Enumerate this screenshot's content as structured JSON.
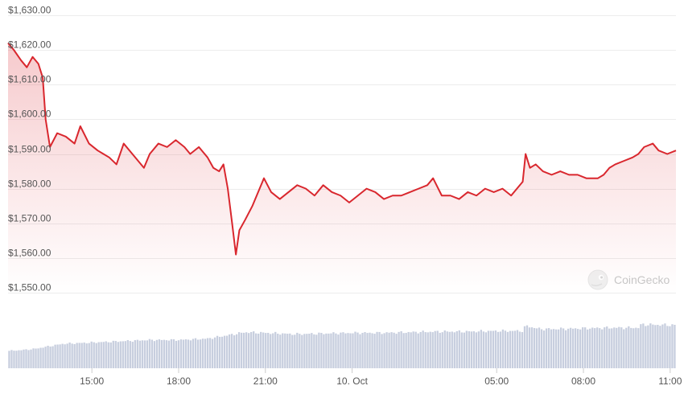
{
  "chart_data": {
    "type": "line",
    "title": "",
    "xlabel": "",
    "ylabel": "",
    "ylim": [
      1540,
      1632
    ],
    "y_ticks": [
      1550,
      1560,
      1570,
      1580,
      1590,
      1600,
      1610,
      1620,
      1630
    ],
    "y_tick_labels": [
      "$1,550.00",
      "$1,560.00",
      "$1,570.00",
      "$1,580.00",
      "$1,590.00",
      "$1,600.00",
      "$1,610.00",
      "$1,620.00",
      "$1,630.00"
    ],
    "x_range_hours": [
      12.1,
      35.2
    ],
    "x_ticks": [
      {
        "h": 15,
        "label": "15:00"
      },
      {
        "h": 18,
        "label": "18:00"
      },
      {
        "h": 21,
        "label": "21:00"
      },
      {
        "h": 24,
        "label": "10. Oct"
      },
      {
        "h": 29,
        "label": "05:00"
      },
      {
        "h": 32,
        "label": "08:00"
      },
      {
        "h": 35,
        "label": "11:00"
      }
    ],
    "grid": true,
    "legend": "none",
    "series": [
      {
        "values": [
          [
            12.1,
            1622
          ],
          [
            12.3,
            1620
          ],
          [
            12.55,
            1617
          ],
          [
            12.75,
            1615
          ],
          [
            12.95,
            1618
          ],
          [
            13.15,
            1616
          ],
          [
            13.3,
            1612
          ],
          [
            13.4,
            1600
          ],
          [
            13.55,
            1592
          ],
          [
            13.8,
            1596
          ],
          [
            14.1,
            1595
          ],
          [
            14.4,
            1593
          ],
          [
            14.6,
            1598
          ],
          [
            14.9,
            1593
          ],
          [
            15.2,
            1591
          ],
          [
            15.6,
            1589
          ],
          [
            15.85,
            1587
          ],
          [
            16.1,
            1593
          ],
          [
            16.4,
            1590
          ],
          [
            16.6,
            1588
          ],
          [
            16.8,
            1586
          ],
          [
            17.0,
            1590
          ],
          [
            17.3,
            1593
          ],
          [
            17.6,
            1592
          ],
          [
            17.9,
            1594
          ],
          [
            18.2,
            1592
          ],
          [
            18.4,
            1590
          ],
          [
            18.7,
            1592
          ],
          [
            19.0,
            1589
          ],
          [
            19.2,
            1586
          ],
          [
            19.4,
            1585
          ],
          [
            19.55,
            1587
          ],
          [
            19.7,
            1580
          ],
          [
            19.85,
            1570
          ],
          [
            19.98,
            1561
          ],
          [
            20.1,
            1568
          ],
          [
            20.3,
            1571
          ],
          [
            20.55,
            1575
          ],
          [
            20.8,
            1580
          ],
          [
            20.95,
            1583
          ],
          [
            21.2,
            1579
          ],
          [
            21.5,
            1577
          ],
          [
            21.8,
            1579
          ],
          [
            22.1,
            1581
          ],
          [
            22.4,
            1580
          ],
          [
            22.7,
            1578
          ],
          [
            23.0,
            1581
          ],
          [
            23.3,
            1579
          ],
          [
            23.6,
            1578
          ],
          [
            23.9,
            1576
          ],
          [
            24.2,
            1578
          ],
          [
            24.5,
            1580
          ],
          [
            24.8,
            1579
          ],
          [
            25.1,
            1577
          ],
          [
            25.4,
            1578
          ],
          [
            25.7,
            1578
          ],
          [
            26.0,
            1579
          ],
          [
            26.3,
            1580
          ],
          [
            26.6,
            1581
          ],
          [
            26.8,
            1583
          ],
          [
            27.1,
            1578
          ],
          [
            27.4,
            1578
          ],
          [
            27.7,
            1577
          ],
          [
            28.0,
            1579
          ],
          [
            28.3,
            1578
          ],
          [
            28.6,
            1580
          ],
          [
            28.9,
            1579
          ],
          [
            29.2,
            1580
          ],
          [
            29.5,
            1578
          ],
          [
            29.7,
            1580
          ],
          [
            29.9,
            1582
          ],
          [
            30.0,
            1590
          ],
          [
            30.15,
            1586
          ],
          [
            30.35,
            1587
          ],
          [
            30.6,
            1585
          ],
          [
            30.9,
            1584
          ],
          [
            31.2,
            1585
          ],
          [
            31.5,
            1584
          ],
          [
            31.8,
            1584
          ],
          [
            32.1,
            1583
          ],
          [
            32.3,
            1583
          ],
          [
            32.5,
            1583
          ],
          [
            32.7,
            1584
          ],
          [
            32.9,
            1586
          ],
          [
            33.1,
            1587
          ],
          [
            33.4,
            1588
          ],
          [
            33.7,
            1589
          ],
          [
            33.9,
            1590
          ],
          [
            34.1,
            1592
          ],
          [
            34.4,
            1593
          ],
          [
            34.6,
            1591
          ],
          [
            34.9,
            1590
          ],
          [
            35.2,
            1591
          ]
        ]
      }
    ],
    "volume": {
      "values": [
        [
          12.1,
          0.27
        ],
        [
          12.5,
          0.28
        ],
        [
          13.0,
          0.3
        ],
        [
          13.5,
          0.34
        ],
        [
          14.0,
          0.38
        ],
        [
          15.0,
          0.4
        ],
        [
          16.0,
          0.42
        ],
        [
          17.0,
          0.44
        ],
        [
          18.0,
          0.44
        ],
        [
          19.0,
          0.46
        ],
        [
          19.8,
          0.52
        ],
        [
          20.3,
          0.56
        ],
        [
          21.0,
          0.55
        ],
        [
          22.0,
          0.53
        ],
        [
          23.0,
          0.54
        ],
        [
          24.0,
          0.55
        ],
        [
          25.0,
          0.55
        ],
        [
          26.0,
          0.56
        ],
        [
          27.0,
          0.57
        ],
        [
          28.0,
          0.57
        ],
        [
          29.0,
          0.58
        ],
        [
          29.9,
          0.58
        ],
        [
          30.0,
          0.66
        ],
        [
          30.5,
          0.61
        ],
        [
          31.0,
          0.61
        ],
        [
          32.0,
          0.62
        ],
        [
          33.0,
          0.63
        ],
        [
          33.9,
          0.63
        ],
        [
          34.0,
          0.68
        ],
        [
          35.2,
          0.67
        ]
      ]
    },
    "colors": {
      "line": "#d9272e",
      "area": "#e0414a",
      "volume": "#c7cede",
      "grid": "#ececec",
      "text": "#555555"
    }
  },
  "watermark": {
    "text": "CoinGecko",
    "icon": "gecko-logo-icon"
  }
}
